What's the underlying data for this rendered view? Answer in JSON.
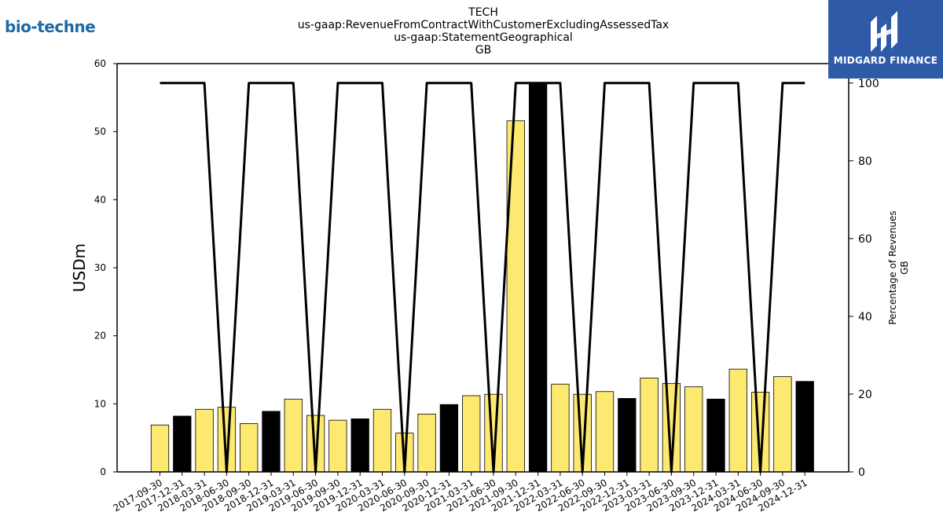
{
  "branding": {
    "left_logo_text": "bio-techne",
    "right_logo_text": "MIDGARD FINANCE"
  },
  "chart_data": {
    "type": "bar",
    "title_lines": [
      "TECH",
      "us-gaap:RevenueFromContractWithCustomerExcludingAssessedTax",
      "us-gaap:StatementGeographical",
      "GB"
    ],
    "ylabel": "USDm",
    "ylabel_right": [
      "Percentage of Revenues",
      "GB"
    ],
    "ylim": [
      0,
      60
    ],
    "ylim_right": [
      0,
      105
    ],
    "yticks": [
      0,
      10,
      20,
      30,
      40,
      50,
      60
    ],
    "yticks_right": [
      0,
      20,
      40,
      60,
      80,
      100
    ],
    "categories": [
      "2017-09-30",
      "2017-12-31",
      "2018-03-31",
      "2018-06-30",
      "2018-09-30",
      "2018-12-31",
      "2019-03-31",
      "2019-06-30",
      "2019-09-30",
      "2019-12-31",
      "2020-03-31",
      "2020-06-30",
      "2020-09-30",
      "2020-12-31",
      "2021-03-31",
      "2021-06-30",
      "2021-09-30",
      "2021-12-31",
      "2022-03-31",
      "2022-06-30",
      "2022-09-30",
      "2022-12-31",
      "2023-03-31",
      "2023-06-30",
      "2023-09-30",
      "2023-12-31",
      "2024-03-31",
      "2024-06-30",
      "2024-09-30",
      "2024-12-31"
    ],
    "series": [
      {
        "type": "bar",
        "values": [
          6.9,
          8.2,
          9.2,
          9.5,
          7.1,
          8.9,
          10.7,
          8.3,
          7.6,
          7.8,
          9.2,
          5.7,
          8.5,
          9.9,
          11.2,
          11.4,
          51.6,
          57.2,
          12.9,
          11.4,
          11.8,
          10.8,
          13.8,
          13.0,
          12.5,
          10.7,
          15.1,
          11.7,
          14.0,
          13.3
        ],
        "colors": [
          "#fde870",
          "#000000",
          "#fde870",
          "#fde870",
          "#fde870",
          "#000000",
          "#fde870",
          "#fde870",
          "#fde870",
          "#000000",
          "#fde870",
          "#fde870",
          "#fde870",
          "#000000",
          "#fde870",
          "#fde870",
          "#fde870",
          "#000000",
          "#fde870",
          "#fde870",
          "#fde870",
          "#000000",
          "#fde870",
          "#fde870",
          "#fde870",
          "#000000",
          "#fde870",
          "#fde870",
          "#fde870",
          "#000000"
        ]
      },
      {
        "type": "line",
        "axis": "right",
        "color": "#000000",
        "values": [
          100,
          100,
          100,
          0,
          100,
          100,
          100,
          0,
          100,
          100,
          100,
          0,
          100,
          100,
          100,
          0,
          100,
          100,
          100,
          0,
          100,
          100,
          100,
          0,
          100,
          100,
          100,
          0,
          100,
          100
        ]
      }
    ],
    "colors": {
      "highlight": "#fde870",
      "dark": "#000000",
      "bar_edge": "#000000"
    },
    "grid": false
  }
}
